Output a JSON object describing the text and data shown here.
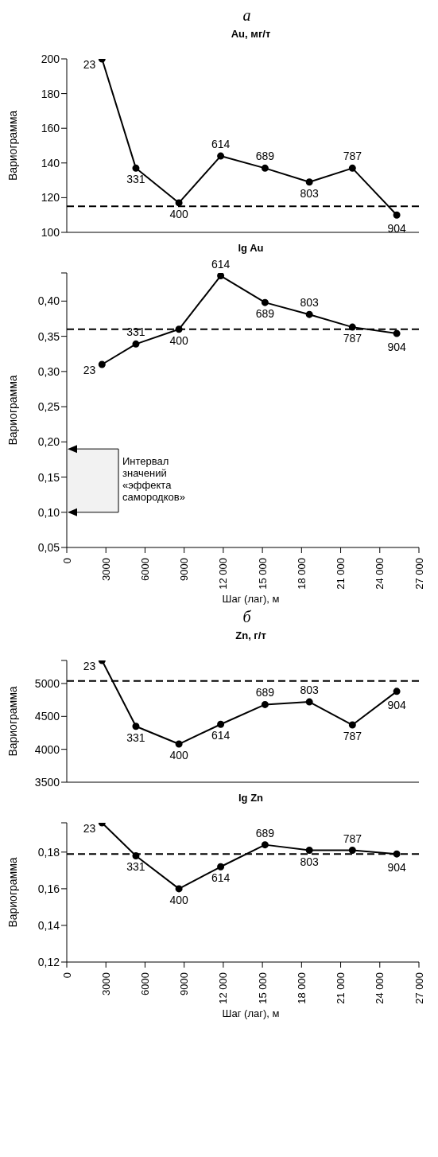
{
  "chart_data": [
    {
      "type": "line",
      "title": "Au, мг/т",
      "ylabel": "Вариограмма",
      "annotations": [
        "а",
        {
          "text": "23",
          "x": 2700,
          "y": 200
        },
        {
          "text": "331",
          "x": 5300,
          "y": 137
        },
        {
          "text": "400",
          "x": 8600,
          "y": 117
        },
        {
          "text": "614",
          "x": 11800,
          "y": 144
        },
        {
          "text": "689",
          "x": 15200,
          "y": 137
        },
        {
          "text": "803",
          "x": 18600,
          "y": 129
        },
        {
          "text": "787",
          "x": 21900,
          "y": 137
        },
        {
          "text": "904",
          "x": 25300,
          "y": 110
        }
      ],
      "x": [
        2700,
        5300,
        8600,
        11800,
        15200,
        18600,
        21900,
        25300
      ],
      "series": [
        {
          "color": "#000000",
          "values": [
            200,
            137,
            117,
            144,
            137,
            129,
            137,
            110
          ]
        }
      ],
      "xlim": [
        0,
        27000
      ],
      "xticks": [
        {
          "value": 0,
          "label": null
        },
        {
          "value": 3000,
          "label": null
        },
        {
          "value": 6000,
          "label": null
        },
        {
          "value": 9000,
          "label": null
        },
        {
          "value": 12000,
          "label": null
        },
        {
          "value": 15000,
          "label": null
        },
        {
          "value": 18000,
          "label": null
        },
        {
          "value": 21000,
          "label": null
        },
        {
          "value": 24000,
          "label": null
        },
        {
          "value": 27000,
          "label": null
        }
      ],
      "ylim": [
        100,
        200
      ],
      "yticks": [
        100,
        120,
        140,
        160,
        180,
        200
      ],
      "tick_labels": "y",
      "marker": "circle",
      "line_style": "solid",
      "ref_lines": [
        {
          "axis": "y",
          "value": 115,
          "line_style": "dashed",
          "color": "#000000"
        }
      ]
    },
    {
      "type": "line",
      "title": "lg Au",
      "ylabel": "Вариограмма",
      "xlabel": "Шаг (лаг), м",
      "annotations": [
        {
          "text": "23",
          "x": 2700,
          "y": 0.31
        },
        {
          "text": "331",
          "x": 5300,
          "y": 0.339
        },
        {
          "text": "400",
          "x": 8600,
          "y": 0.36
        },
        {
          "text": "614",
          "x": 11800,
          "y": 0.436
        },
        {
          "text": "689",
          "x": 15200,
          "y": 0.398
        },
        {
          "text": "803",
          "x": 18600,
          "y": 0.381
        },
        {
          "text": "787",
          "x": 21900,
          "y": 0.363
        },
        {
          "text": "904",
          "x": 25300,
          "y": 0.354
        }
      ],
      "x": [
        2700,
        5300,
        8600,
        11800,
        15200,
        18600,
        21900,
        25300
      ],
      "series": [
        {
          "color": "#000000",
          "values": [
            0.31,
            0.339,
            0.36,
            0.436,
            0.398,
            0.381,
            0.363,
            0.354
          ]
        }
      ],
      "xlim": [
        0,
        27000
      ],
      "xticks": [
        0,
        3000,
        6000,
        9000,
        {
          "value": 12000,
          "label": "12 000"
        },
        {
          "value": 15000,
          "label": "15 000"
        },
        {
          "value": 18000,
          "label": "18 000"
        },
        {
          "value": 21000,
          "label": "21 000"
        },
        {
          "value": 24000,
          "label": "24 000"
        },
        {
          "value": 27000,
          "label": "27 000"
        }
      ],
      "ylim": [
        0.05,
        0.44
      ],
      "yticks": [
        {
          "value": 0.05,
          "label": "0,05"
        },
        {
          "value": 0.1,
          "label": "0,10"
        },
        {
          "value": 0.15,
          "label": "0,15"
        },
        {
          "value": 0.2,
          "label": "0,20"
        },
        {
          "value": 0.25,
          "label": "0,25"
        },
        {
          "value": 0.3,
          "label": "0,30"
        },
        {
          "value": 0.35,
          "label": "0,35"
        },
        {
          "value": 0.4,
          "label": "0,40"
        },
        {
          "value": 0.44,
          "label": null
        }
      ],
      "marker": "circle",
      "line_style": "solid",
      "ref_lines": [
        {
          "axis": "y",
          "value": 0.36,
          "line_style": "dashed",
          "color": "#000000"
        }
      ],
      "bands": [
        {
          "axis": "y",
          "from": 0.1,
          "to": 0.19,
          "color": "#f2f2f2",
          "label": "Интервал значений «эффекта самородков»"
        }
      ]
    },
    {
      "type": "line",
      "title": "Zn, г/т",
      "ylabel": "Вариограмма",
      "annotations": [
        "б",
        {
          "text": "23",
          "x": 2700,
          "y": 5350
        },
        {
          "text": "331",
          "x": 5300,
          "y": 4350
        },
        {
          "text": "400",
          "x": 8600,
          "y": 4080
        },
        {
          "text": "614",
          "x": 11800,
          "y": 4380
        },
        {
          "text": "689",
          "x": 15200,
          "y": 4680
        },
        {
          "text": "803",
          "x": 18600,
          "y": 4720
        },
        {
          "text": "787",
          "x": 21900,
          "y": 4370
        },
        {
          "text": "904",
          "x": 25300,
          "y": 4880
        }
      ],
      "x": [
        2700,
        5300,
        8600,
        11800,
        15200,
        18600,
        21900,
        25300
      ],
      "series": [
        {
          "color": "#000000",
          "values": [
            5350,
            4350,
            4080,
            4380,
            4680,
            4720,
            4370,
            4880
          ]
        }
      ],
      "xlim": [
        0,
        27000
      ],
      "xticks": [
        {
          "value": 0,
          "label": null
        },
        {
          "value": 3000,
          "label": null
        },
        {
          "value": 6000,
          "label": null
        },
        {
          "value": 9000,
          "label": null
        },
        {
          "value": 12000,
          "label": null
        },
        {
          "value": 15000,
          "label": null
        },
        {
          "value": 18000,
          "label": null
        },
        {
          "value": 21000,
          "label": null
        },
        {
          "value": 24000,
          "label": null
        },
        {
          "value": 27000,
          "label": null
        }
      ],
      "ylim": [
        3500,
        5350
      ],
      "yticks": [
        3500,
        4000,
        4500,
        5000,
        {
          "value": 5350,
          "label": null
        }
      ],
      "tick_labels": "y",
      "marker": "circle",
      "line_style": "solid",
      "ref_lines": [
        {
          "axis": "y",
          "value": 5040,
          "line_style": "dashed",
          "color": "#000000"
        }
      ]
    },
    {
      "type": "line",
      "title": "lg Zn",
      "ylabel": "Вариограмма",
      "xlabel": "Шаг (лаг), м",
      "annotations": [
        {
          "text": "23",
          "x": 2700,
          "y": 0.196
        },
        {
          "text": "331",
          "x": 5300,
          "y": 0.178
        },
        {
          "text": "400",
          "x": 8600,
          "y": 0.16
        },
        {
          "text": "614",
          "x": 11800,
          "y": 0.172
        },
        {
          "text": "689",
          "x": 15200,
          "y": 0.184
        },
        {
          "text": "803",
          "x": 18600,
          "y": 0.181
        },
        {
          "text": "787",
          "x": 21900,
          "y": 0.181
        },
        {
          "text": "904",
          "x": 25300,
          "y": 0.179
        }
      ],
      "x": [
        2700,
        5300,
        8600,
        11800,
        15200,
        18600,
        21900,
        25300
      ],
      "series": [
        {
          "color": "#000000",
          "values": [
            0.196,
            0.178,
            0.16,
            0.172,
            0.184,
            0.181,
            0.181,
            0.179
          ]
        }
      ],
      "xlim": [
        0,
        27000
      ],
      "xticks": [
        0,
        3000,
        6000,
        9000,
        {
          "value": 12000,
          "label": "12 000"
        },
        {
          "value": 15000,
          "label": "15 000"
        },
        {
          "value": 18000,
          "label": "18 000"
        },
        {
          "value": 21000,
          "label": "21 000"
        },
        {
          "value": 24000,
          "label": "24 000"
        },
        {
          "value": 27000,
          "label": "27 000"
        }
      ],
      "ylim": [
        0.12,
        0.196
      ],
      "yticks": [
        {
          "value": 0.12,
          "label": "0,12"
        },
        {
          "value": 0.14,
          "label": "0,14"
        },
        {
          "value": 0.16,
          "label": "0,16"
        },
        {
          "value": 0.18,
          "label": "0,18"
        },
        {
          "value": 0.196,
          "label": null
        }
      ],
      "marker": "circle",
      "line_style": "solid",
      "ref_lines": [
        {
          "axis": "y",
          "value": 0.179,
          "line_style": "dashed",
          "color": "#000000"
        }
      ]
    }
  ]
}
